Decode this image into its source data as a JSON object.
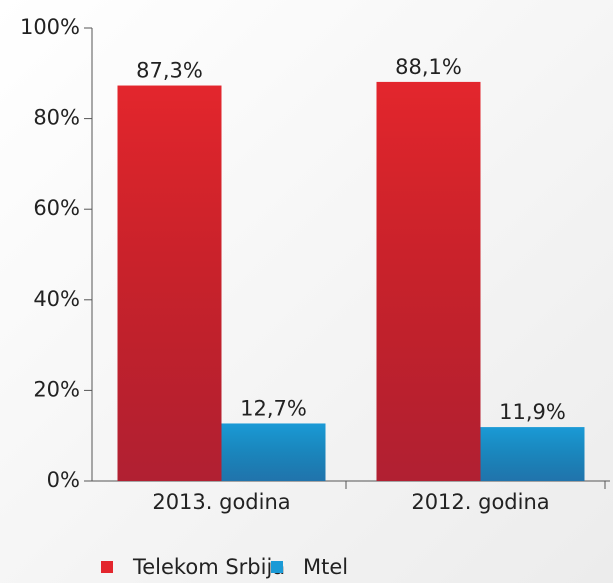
{
  "chart_data": {
    "type": "bar",
    "categories": [
      "2013. godina",
      "2012. godina"
    ],
    "series": [
      {
        "name": "Telekom Srbija",
        "color": "#e3262d",
        "values": [
          87.3,
          88.1
        ],
        "value_labels": [
          "87,3%",
          "88,1%"
        ]
      },
      {
        "name": "Mtel",
        "color": "#1b9ad6",
        "values": [
          12.7,
          11.9
        ],
        "value_labels": [
          "12,7%",
          "11,9%"
        ]
      }
    ],
    "ylim": [
      0,
      100
    ],
    "yticks": [
      {
        "value": 0,
        "label": "0%"
      },
      {
        "value": 20,
        "label": "20%"
      },
      {
        "value": 40,
        "label": "40%"
      },
      {
        "value": 60,
        "label": "60%"
      },
      {
        "value": 80,
        "label": "80%"
      },
      {
        "value": 100,
        "label": "100%"
      }
    ],
    "legend": "bottom"
  }
}
